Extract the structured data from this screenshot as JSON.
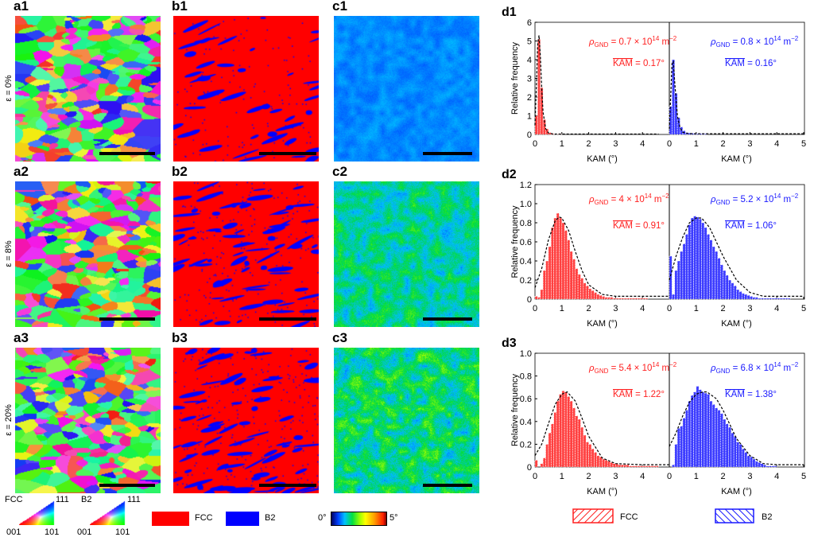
{
  "panels": {
    "a": [
      "a1",
      "a2",
      "a3"
    ],
    "b": [
      "b1",
      "b2",
      "b3"
    ],
    "c": [
      "c1",
      "c2",
      "c3"
    ],
    "d": [
      "d1",
      "d2",
      "d3"
    ]
  },
  "strains": [
    "ε = 0%",
    "ε = 8%",
    "ε = 20%"
  ],
  "ipf_legend": {
    "fcc": {
      "phase": "FCC",
      "top": "111",
      "left": "001",
      "right": "101"
    },
    "b2": {
      "phase": "B2",
      "top": "111",
      "left": "001",
      "right": "101"
    }
  },
  "phase_legend": {
    "fcc": "FCC",
    "b2": "B2",
    "fcc_color": "#ff0000",
    "b2_color": "#0000ff"
  },
  "kam_colorbar": {
    "min": "0°",
    "max": "5°"
  },
  "hist_legend": {
    "fcc": "FCC",
    "b2": "B2"
  },
  "colors": {
    "fcc": "#ff2020",
    "b2": "#1a1aff",
    "fit": "#000000"
  },
  "chart_data": [
    {
      "type": "bar",
      "panel": "d1",
      "xlabel": "KAM (°)",
      "ylabel": "Relative frequency",
      "ylim": [
        0,
        6
      ],
      "yticks": [
        "0",
        "1",
        "2",
        "3",
        "4",
        "5",
        "6"
      ],
      "xlim": [
        0,
        5
      ],
      "xticks": [
        "0",
        "1",
        "2",
        "3",
        "4",
        "5"
      ],
      "bin_width": 0.1,
      "series": [
        {
          "phase": "FCC",
          "rho_value": "0.7",
          "kam": "0.17°",
          "values": [
            1.0,
            5.1,
            2.5,
            0.8,
            0.3,
            0.1,
            0.05,
            0.02,
            0.02,
            0.02
          ],
          "fit": {
            "x": [
              0,
              0.05,
              0.1,
              0.15,
              0.2,
              0.25,
              0.3,
              0.4,
              0.5,
              0.7,
              1,
              2,
              3,
              4.6
            ],
            "y": [
              0.5,
              2.5,
              4.8,
              5.3,
              4.2,
              2.5,
              1.2,
              0.3,
              0.08,
              0.02,
              0.02,
              0.02,
              0.02,
              0.02
            ]
          }
        },
        {
          "phase": "B2",
          "rho_value": "0.8",
          "kam": "0.16°",
          "values": [
            1.5,
            4.0,
            2.2,
            0.9,
            0.4,
            0.2,
            0.1,
            0.08,
            0.06,
            0.05,
            0.04,
            0.04,
            0.04,
            0.04
          ],
          "fit": {
            "x": [
              0,
              0.05,
              0.1,
              0.15,
              0.2,
              0.3,
              0.4,
              0.5,
              0.7,
              1,
              2,
              3,
              4,
              5
            ],
            "y": [
              0.3,
              2,
              3.8,
              3.9,
              2.8,
              1.0,
              0.35,
              0.12,
              0.05,
              0.04,
              0.04,
              0.04,
              0.04,
              0.04
            ]
          }
        }
      ]
    },
    {
      "type": "bar",
      "panel": "d2",
      "xlabel": "KAM (°)",
      "ylabel": "Relative frequency",
      "ylim": [
        0,
        1.2
      ],
      "yticks": [
        "0",
        "0.2",
        "0.4",
        "0.6",
        "0.8",
        "1.0",
        "1.2"
      ],
      "xlim": [
        0,
        5
      ],
      "xticks": [
        "0",
        "1",
        "2",
        "3",
        "4",
        "5"
      ],
      "bin_width": 0.1,
      "series": [
        {
          "phase": "FCC",
          "rho_value": "4",
          "kam": "0.91°",
          "values": [
            0.03,
            0.02,
            0.1,
            0.3,
            0.4,
            0.55,
            0.75,
            0.85,
            0.9,
            0.85,
            0.8,
            0.72,
            0.62,
            0.5,
            0.42,
            0.32,
            0.26,
            0.22,
            0.17,
            0.14,
            0.11,
            0.09,
            0.07,
            0.05,
            0.04,
            0.03,
            0.02,
            0.02,
            0.02,
            0.01,
            0.01,
            0.01,
            0.01,
            0.01,
            0.01,
            0.01,
            0.01,
            0.01,
            0.01,
            0.01,
            0.01,
            0.01
          ],
          "fit": {
            "x": [
              0,
              0.25,
              0.5,
              0.75,
              0.9,
              1.0,
              1.25,
              1.5,
              1.75,
              2,
              2.5,
              3,
              4,
              5
            ],
            "y": [
              0.12,
              0.32,
              0.62,
              0.82,
              0.86,
              0.85,
              0.72,
              0.5,
              0.3,
              0.15,
              0.05,
              0.03,
              0.03,
              0.03
            ]
          }
        },
        {
          "phase": "B2",
          "rho_value": "5.2",
          "kam": "1.06°",
          "values": [
            0.45,
            0.05,
            0.3,
            0.4,
            0.5,
            0.58,
            0.68,
            0.78,
            0.85,
            0.87,
            0.86,
            0.84,
            0.8,
            0.75,
            0.68,
            0.62,
            0.55,
            0.5,
            0.43,
            0.36,
            0.3,
            0.25,
            0.2,
            0.17,
            0.14,
            0.1,
            0.08,
            0.06,
            0.05,
            0.04,
            0.03,
            0.02,
            0.02,
            0.01,
            0.01,
            0.01,
            0.01,
            0.01,
            0.01,
            0.01,
            0.01,
            0.01,
            0.01,
            0.01,
            0.01
          ],
          "fit": {
            "x": [
              0,
              0.25,
              0.5,
              0.75,
              1,
              1.2,
              1.5,
              1.75,
              2,
              2.5,
              3,
              3.5,
              4,
              5
            ],
            "y": [
              0.2,
              0.45,
              0.65,
              0.8,
              0.85,
              0.85,
              0.75,
              0.6,
              0.45,
              0.2,
              0.07,
              0.03,
              0.03,
              0.03
            ]
          }
        }
      ]
    },
    {
      "type": "bar",
      "panel": "d3",
      "xlabel": "KAM (°)",
      "ylabel": "Relative frequency",
      "ylim": [
        0,
        1.0
      ],
      "yticks": [
        "0",
        "0.2",
        "0.4",
        "0.6",
        "0.8",
        "1.0"
      ],
      "xlim": [
        0,
        5
      ],
      "xticks": [
        "0",
        "1",
        "2",
        "3",
        "4",
        "5"
      ],
      "bin_width": 0.1,
      "series": [
        {
          "phase": "FCC",
          "rho_value": "5.4",
          "kam": "1.22°",
          "values": [
            0.06,
            0.0,
            0.03,
            0.08,
            0.2,
            0.3,
            0.38,
            0.48,
            0.58,
            0.64,
            0.67,
            0.66,
            0.62,
            0.58,
            0.52,
            0.45,
            0.42,
            0.35,
            0.28,
            0.22,
            0.2,
            0.16,
            0.13,
            0.1,
            0.09,
            0.07,
            0.06,
            0.05,
            0.04,
            0.03,
            0.03,
            0.02,
            0.02,
            0.02,
            0.02,
            0.01,
            0.01,
            0.01,
            0.01,
            0.01,
            0.01,
            0.01,
            0.01,
            0.01,
            0.01,
            0.01
          ],
          "fit": {
            "x": [
              0,
              0.25,
              0.5,
              0.75,
              1,
              1.2,
              1.5,
              1.75,
              2,
              2.5,
              3,
              4,
              5
            ],
            "y": [
              0.1,
              0.2,
              0.38,
              0.55,
              0.64,
              0.66,
              0.58,
              0.43,
              0.27,
              0.08,
              0.03,
              0.02,
              0.02
            ]
          }
        },
        {
          "phase": "B2",
          "rho_value": "6.8",
          "kam": "1.38°",
          "values": [
            0,
            0.02,
            0.2,
            0.34,
            0.36,
            0.43,
            0.5,
            0.58,
            0.63,
            0.66,
            0.71,
            0.68,
            0.66,
            0.65,
            0.64,
            0.58,
            0.55,
            0.52,
            0.5,
            0.47,
            0.42,
            0.38,
            0.35,
            0.3,
            0.27,
            0.22,
            0.2,
            0.16,
            0.13,
            0.1,
            0.09,
            0.07,
            0.05,
            0.04,
            0.03,
            0.02,
            0.01,
            0.01,
            0.01,
            0.01
          ],
          "fit": {
            "x": [
              0,
              0.25,
              0.5,
              0.75,
              1,
              1.25,
              1.4,
              1.75,
              2,
              2.5,
              3,
              3.5,
              4,
              5
            ],
            "y": [
              0.18,
              0.3,
              0.45,
              0.57,
              0.64,
              0.66,
              0.66,
              0.6,
              0.5,
              0.25,
              0.1,
              0.03,
              0.02,
              0.02
            ]
          }
        }
      ]
    }
  ],
  "annot": {
    "rho_symbol": "ρ",
    "rho_sub": "GND",
    "times": " × 10",
    "exp": "14",
    "unit": " m",
    "unit_exp": "−2",
    "kam_word": "KAM"
  }
}
